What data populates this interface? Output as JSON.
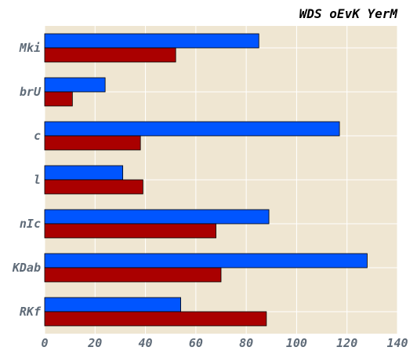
{
  "chart_data": {
    "type": "bar",
    "orientation": "horizontal",
    "title": "WDS oEvK YerM",
    "categories": [
      "Mki",
      "brU",
      "c",
      "l",
      "nIc",
      "KDab",
      "RKf"
    ],
    "series": [
      {
        "color": "#0055ff",
        "values": [
          85,
          24,
          117,
          31,
          89,
          128,
          54
        ]
      },
      {
        "color": "#aa0000",
        "values": [
          52,
          11,
          38,
          39,
          68,
          70,
          88
        ]
      }
    ],
    "xlim": [
      0,
      140
    ],
    "xticks": [
      "0",
      "20",
      "40",
      "60",
      "80",
      "100",
      "120",
      "140"
    ],
    "xlabel": "",
    "ylabel": "",
    "grid": true,
    "background": "#efe6d2",
    "legend": "none"
  }
}
